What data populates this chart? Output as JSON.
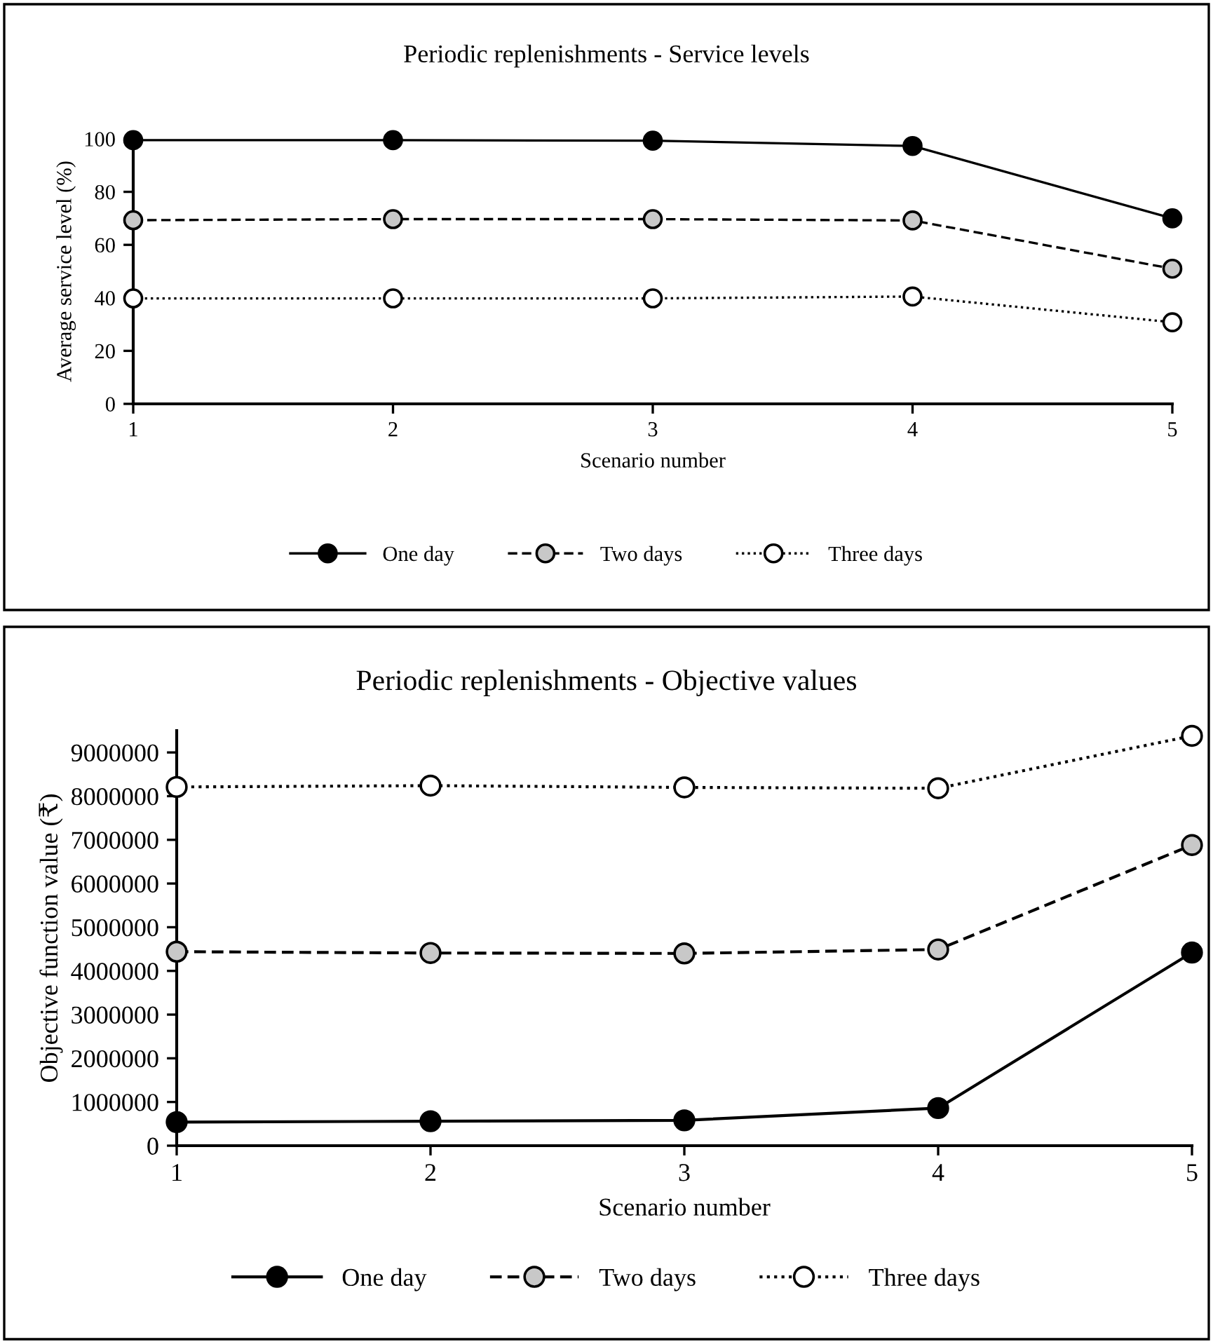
{
  "chart_data": [
    {
      "type": "line",
      "title": "Periodic replenishments - Service levels",
      "xlabel": "Scenario number",
      "ylabel": "Average service level (%)",
      "x": [
        1,
        2,
        3,
        4,
        5
      ],
      "xlim": [
        1,
        5
      ],
      "xticks": [
        1,
        2,
        3,
        4,
        5
      ],
      "ylim": [
        0,
        100
      ],
      "yticks": [
        0,
        20,
        40,
        60,
        80,
        100
      ],
      "grid": false,
      "legend": "bottom",
      "marker": "circle",
      "series": [
        {
          "name": "One day",
          "color": "#000000",
          "line_style": "solid",
          "values": [
            99.5,
            99.5,
            99.3,
            97.3,
            70
          ]
        },
        {
          "name": "Two days",
          "color": "#c8c8c8",
          "line_style": "dashed",
          "values": [
            69.3,
            69.7,
            69.7,
            69.2,
            51
          ]
        },
        {
          "name": "Three days",
          "color": "#ffffff",
          "line_style": "dotted",
          "values": [
            39.8,
            39.8,
            39.8,
            40.5,
            30.8
          ]
        }
      ]
    },
    {
      "type": "line",
      "title": "Periodic replenishments - Objective values",
      "xlabel": "Scenario number",
      "ylabel": "Objective function value (₹)",
      "x": [
        1,
        2,
        3,
        4,
        5
      ],
      "xlim": [
        1,
        5
      ],
      "xticks": [
        1,
        2,
        3,
        4,
        5
      ],
      "ylim": [
        0,
        9500000
      ],
      "yticks": [
        0,
        1000000,
        2000000,
        3000000,
        4000000,
        5000000,
        6000000,
        7000000,
        8000000,
        9000000
      ],
      "grid": false,
      "legend": "bottom",
      "marker": "circle",
      "series": [
        {
          "name": "One day",
          "color": "#000000",
          "line_style": "solid",
          "values": [
            540000,
            560000,
            580000,
            860000,
            4420000
          ]
        },
        {
          "name": "Two days",
          "color": "#c8c8c8",
          "line_style": "dashed",
          "values": [
            4440000,
            4410000,
            4400000,
            4490000,
            6880000
          ]
        },
        {
          "name": "Three days",
          "color": "#ffffff",
          "line_style": "dotted",
          "values": [
            8210000,
            8240000,
            8200000,
            8180000,
            9380000
          ]
        }
      ]
    }
  ]
}
